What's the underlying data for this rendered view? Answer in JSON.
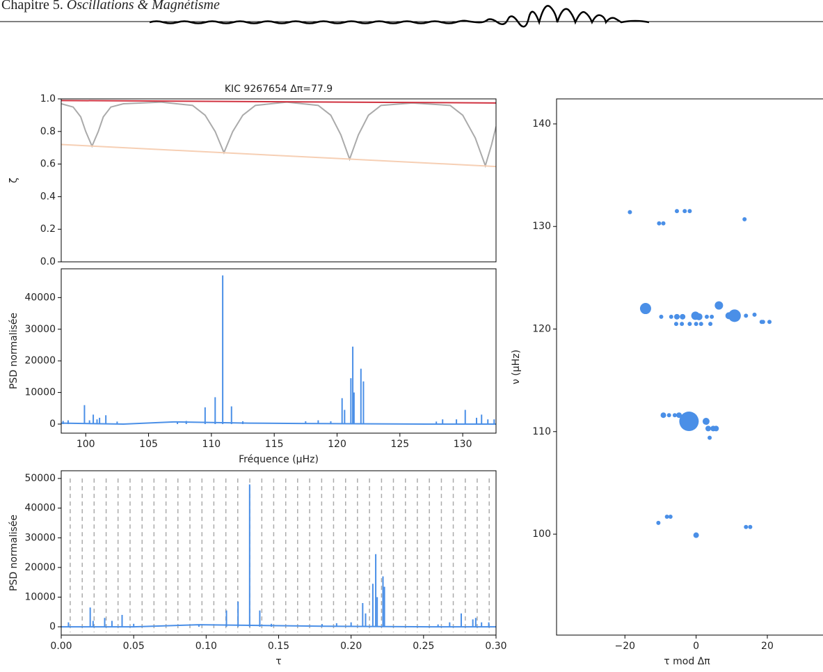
{
  "header": {
    "chapter": "Chapitre 5.",
    "title": "Oscillations & Magnétisme"
  },
  "chart_data": [
    {
      "type": "line",
      "title": "KIC 9267654 Δπ=77.9",
      "ylabel": "ζ",
      "xlim": [
        98.05,
        132.65
      ],
      "ylim": [
        0,
        1
      ],
      "yticks": [
        {
          "value": 0,
          "label": "0.0"
        },
        0.2,
        0.4,
        0.6,
        0.8,
        {
          "value": 1,
          "label": "1.0"
        }
      ],
      "series": [
        {
          "color": "#aaaaaa",
          "x": [
            98.05,
            99,
            99.6,
            100,
            100.5,
            101,
            101.4,
            102,
            103,
            106,
            108.5,
            109.5,
            110.3,
            111,
            111.7,
            112.5,
            113.5,
            116,
            118.5,
            119.5,
            120.3,
            121,
            121.7,
            122.5,
            123.5,
            126,
            129,
            130,
            131,
            131.8,
            132.3,
            132.65
          ],
          "values": [
            0.97,
            0.95,
            0.89,
            0.8,
            0.71,
            0.8,
            0.89,
            0.95,
            0.97,
            0.98,
            0.96,
            0.9,
            0.8,
            0.67,
            0.8,
            0.9,
            0.96,
            0.98,
            0.96,
            0.9,
            0.78,
            0.63,
            0.78,
            0.9,
            0.96,
            0.975,
            0.96,
            0.9,
            0.76,
            0.59,
            0.72,
            0.83
          ]
        },
        {
          "color": "#d0313f",
          "x": [
            98.05,
            132.65
          ],
          "values": [
            0.99,
            0.975
          ]
        },
        {
          "color": "#f6cfb4",
          "x": [
            98.05,
            132.65
          ],
          "values": [
            0.72,
            0.585
          ]
        }
      ]
    },
    {
      "type": "line",
      "ylabel": "PSD normalisée",
      "xlabel": "Fréquence (μHz)",
      "xlim": [
        98.05,
        132.65
      ],
      "ylim": [
        -2860,
        49100
      ],
      "xticks": [
        100,
        105,
        110,
        115,
        120,
        125,
        130
      ],
      "yticks": [
        0,
        10000,
        20000,
        30000,
        40000
      ],
      "series": [
        {
          "type": "line",
          "color": "#4a8fe7",
          "x": [
            98.05,
            103,
            107,
            113,
            117,
            127,
            132.65
          ],
          "values": [
            300,
            0,
            700,
            300,
            200,
            0,
            0
          ]
        },
        {
          "type": "stem",
          "color": "#4a8fe7",
          "x": [
            98.2,
            98.6,
            99.9,
            100.3,
            100.6,
            100.9,
            101.1,
            101.6,
            102.5,
            107.3,
            108,
            109.5,
            110.3,
            110.9,
            111.6,
            112.5,
            117.5,
            118.5,
            119.5,
            120.4,
            120.6,
            121.1,
            121.25,
            121.35,
            121.9,
            122.1,
            127.9,
            128.4,
            129.5,
            130.2,
            131.1,
            131.5,
            132,
            132.5
          ],
          "values": [
            1000,
            1200,
            6000,
            1200,
            3000,
            1500,
            2000,
            2800,
            800,
            600,
            1000,
            5300,
            8500,
            47000,
            5600,
            900,
            900,
            1200,
            900,
            8200,
            4500,
            14500,
            24500,
            10000,
            17500,
            13500,
            800,
            1500,
            1500,
            4500,
            2000,
            3000,
            1500,
            1500
          ]
        }
      ]
    },
    {
      "type": "line",
      "ylabel": "PSD normalisée",
      "xlabel": "τ",
      "xlim": [
        0,
        0.3
      ],
      "ylim": [
        -2800,
        52600
      ],
      "xticks": [
        {
          "value": 0,
          "label": "0.00"
        },
        0.05,
        {
          "value": 0.1,
          "label": "0.10"
        },
        0.15,
        {
          "value": 0.2,
          "label": "0.20"
        },
        0.25,
        {
          "value": 0.3,
          "label": "0.30"
        }
      ],
      "yticks": [
        0,
        10000,
        20000,
        30000,
        40000,
        50000
      ],
      "vlines": [
        0.0062,
        0.0145,
        0.0227,
        0.031,
        0.0392,
        0.0475,
        0.0558,
        0.064,
        0.0723,
        0.0805,
        0.0888,
        0.0971,
        0.1053,
        0.1136,
        0.1218,
        0.1301,
        0.1384,
        0.1466,
        0.1549,
        0.1631,
        0.1714,
        0.1797,
        0.1879,
        0.1962,
        0.2044,
        0.2127,
        0.221,
        0.2292,
        0.2375,
        0.2457,
        0.254,
        0.2623,
        0.2705,
        0.2788,
        0.287,
        0.2953
      ],
      "vline_color": "#aaaaaa",
      "series": [
        {
          "type": "line",
          "color": "#4a8fe7",
          "x": [
            0,
            0.05,
            0.095,
            0.16,
            0.18,
            0.255,
            0.3
          ],
          "values": [
            0,
            0,
            700,
            300,
            200,
            0,
            0
          ]
        },
        {
          "type": "stem",
          "color": "#4a8fe7",
          "x": [
            0.005,
            0.02,
            0.022,
            0.03,
            0.035,
            0.042,
            0.05,
            0.095,
            0.114,
            0.122,
            0.13,
            0.137,
            0.145,
            0.18,
            0.19,
            0.2,
            0.208,
            0.21,
            0.215,
            0.217,
            0.218,
            0.222,
            0.223,
            0.26,
            0.268,
            0.276,
            0.284,
            0.286,
            0.29,
            0.295
          ],
          "values": [
            1500,
            6500,
            2000,
            3000,
            2000,
            4000,
            1000,
            600,
            5500,
            8500,
            48000,
            5500,
            1000,
            900,
            1200,
            1500,
            8000,
            4500,
            14500,
            24500,
            10000,
            17000,
            13500,
            800,
            1500,
            4500,
            2500,
            3000,
            1500,
            1500
          ]
        }
      ]
    },
    {
      "type": "scatter",
      "xlabel": "τ mod Δπ",
      "ylabel": "ν (μHz)",
      "xlim": [
        -39.2,
        37.2
      ],
      "ylim": [
        90.16,
        142.44
      ],
      "xticks": [
        {
          "value": -20,
          "label": "−20"
        },
        0,
        20
      ],
      "yticks": [
        100,
        110,
        120,
        130,
        140
      ],
      "series": [
        {
          "color": "#4a8fe7",
          "x": [
            -18.6,
            -10.4,
            -9.2,
            -5.4,
            -3.2,
            -1.8,
            13.6,
            -14.2,
            6.4,
            10.8,
            9.2,
            -9.8,
            -7,
            -5.4,
            -3.8,
            -0.2,
            0.8,
            3,
            4.4,
            -5.6,
            -4,
            -1.8,
            0,
            1.4,
            4,
            14,
            16.4,
            18.4,
            20.6,
            18.8,
            -9.2,
            -7.6,
            -6,
            -4.8,
            -2,
            2.8,
            3.4,
            4.8,
            5.6,
            3.8,
            -10.6,
            -8.2,
            -7.2,
            0,
            14,
            15.2
          ],
          "values": [
            131.4,
            130.3,
            130.3,
            131.5,
            131.5,
            131.5,
            130.7,
            122,
            122.3,
            121.3,
            121.3,
            121.2,
            121.2,
            121.2,
            121.2,
            121.3,
            121.2,
            121.2,
            121.2,
            120.5,
            120.5,
            120.5,
            120.5,
            120.5,
            120.5,
            121.3,
            121.4,
            120.7,
            120.7,
            120.7,
            111.6,
            111.6,
            111.6,
            111.6,
            111,
            111,
            110.3,
            110.3,
            110.3,
            109.4,
            101.1,
            101.7,
            101.7,
            99.9,
            100.7,
            100.7
          ],
          "sizes": [
            9,
            9,
            9,
            9,
            9,
            9,
            9,
            64,
            36,
            81,
            25,
            9,
            9,
            16,
            16,
            36,
            25,
            9,
            9,
            9,
            9,
            9,
            9,
            9,
            9,
            9,
            9,
            9,
            9,
            9,
            16,
            9,
            9,
            16,
            196,
            25,
            16,
            16,
            16,
            9,
            9,
            9,
            9,
            16,
            9,
            9
          ]
        }
      ]
    }
  ]
}
